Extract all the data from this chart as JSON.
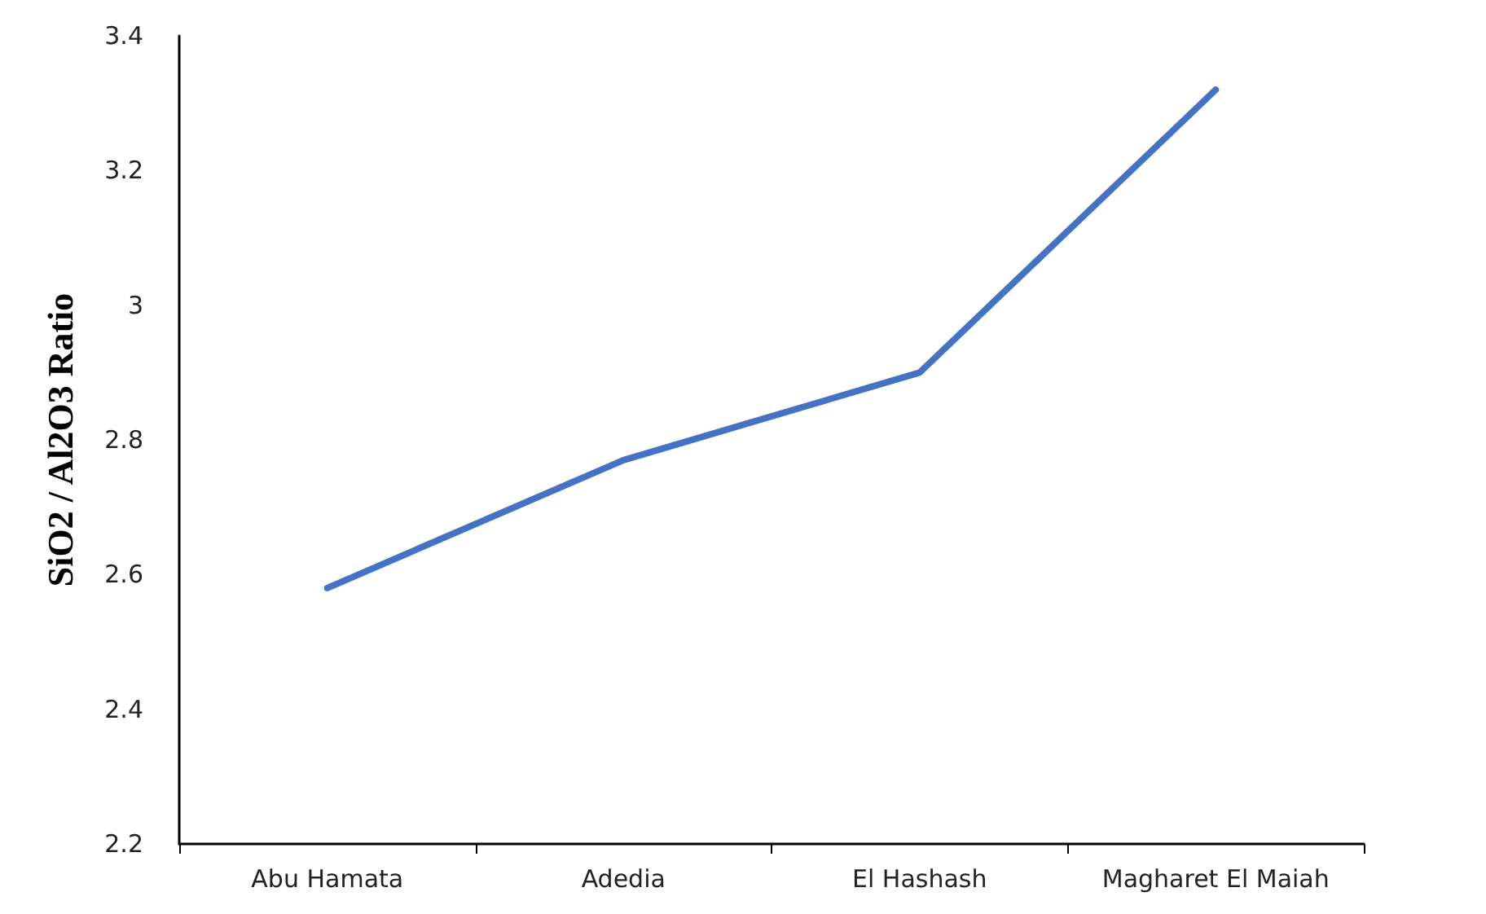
{
  "chart_data": {
    "type": "line",
    "ylabel": "SiO2 / Al2O3 Ratio",
    "categories": [
      "Abu Hamata",
      "Adedia",
      "El Hashash",
      "Magharet El Maiah"
    ],
    "series": [
      {
        "color": "#4472c4",
        "values": [
          2.58,
          2.77,
          2.9,
          3.32
        ]
      }
    ],
    "ylim": [
      2.2,
      3.4
    ],
    "yticks": [
      2.2,
      2.4,
      2.6,
      2.8,
      3,
      3.2,
      3.4
    ],
    "grid": false,
    "marker": "none",
    "line_style": "solid"
  }
}
